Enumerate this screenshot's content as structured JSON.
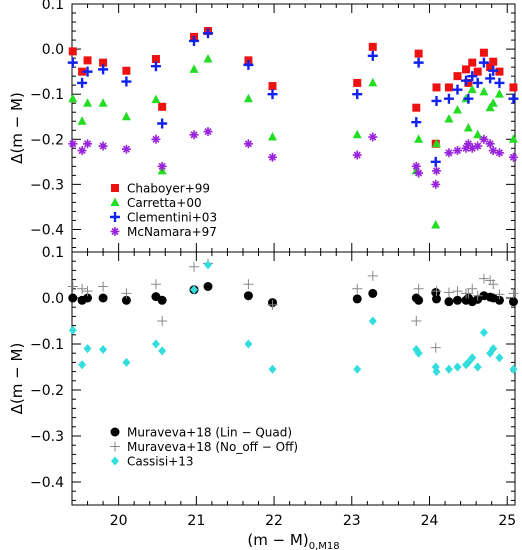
{
  "chart_data": [
    {
      "type": "scatter",
      "panel": "top",
      "ylabel": "Δ(m − M)",
      "xlim": [
        19.4,
        25.1
      ],
      "ylim": [
        -0.45,
        0.1
      ],
      "yticks": [
        {
          "value": 0.1,
          "label": "0.1"
        },
        {
          "value": 0.0,
          "label": "0.0"
        },
        {
          "value": -0.1,
          "label": "−0.1"
        },
        {
          "value": -0.2,
          "label": "−0.2"
        },
        {
          "value": -0.3,
          "label": "−0.3"
        },
        {
          "value": -0.4,
          "label": "−0.4"
        }
      ],
      "legend": "center-left",
      "series": [
        {
          "name": "Chaboyer+99",
          "marker": "square",
          "color": "#ee1111",
          "points": [
            [
              19.41,
              -0.005
            ],
            [
              19.53,
              -0.05
            ],
            [
              19.6,
              -0.025
            ],
            [
              19.8,
              -0.03
            ],
            [
              20.1,
              -0.048
            ],
            [
              20.48,
              -0.022
            ],
            [
              20.56,
              -0.128
            ],
            [
              20.97,
              0.027
            ],
            [
              21.15,
              0.04
            ],
            [
              21.67,
              -0.025
            ],
            [
              21.98,
              -0.082
            ],
            [
              23.07,
              -0.075
            ],
            [
              23.27,
              0.005
            ],
            [
              23.83,
              -0.13
            ],
            [
              23.86,
              -0.01
            ],
            [
              24.08,
              -0.21
            ],
            [
              24.09,
              -0.085
            ],
            [
              24.25,
              -0.085
            ],
            [
              24.36,
              -0.06
            ],
            [
              24.47,
              -0.045
            ],
            [
              24.5,
              -0.075
            ],
            [
              24.55,
              -0.03
            ],
            [
              24.62,
              -0.05
            ],
            [
              24.7,
              -0.008
            ],
            [
              24.78,
              -0.04
            ],
            [
              24.82,
              -0.028
            ],
            [
              24.9,
              -0.05
            ],
            [
              25.08,
              -0.085
            ]
          ]
        },
        {
          "name": "Carretta+00",
          "marker": "triangle",
          "color": "#22dd22",
          "points": [
            [
              19.41,
              -0.11
            ],
            [
              19.53,
              -0.16
            ],
            [
              19.6,
              -0.12
            ],
            [
              19.8,
              -0.12
            ],
            [
              20.1,
              -0.15
            ],
            [
              20.48,
              -0.112
            ],
            [
              20.56,
              -0.27
            ],
            [
              20.97,
              -0.045
            ],
            [
              21.15,
              -0.022
            ],
            [
              21.67,
              -0.11
            ],
            [
              21.98,
              -0.195
            ],
            [
              23.07,
              -0.19
            ],
            [
              23.27,
              -0.075
            ],
            [
              23.83,
              -0.27
            ],
            [
              23.86,
              -0.2
            ],
            [
              24.08,
              -0.39
            ],
            [
              24.09,
              -0.21
            ],
            [
              24.25,
              -0.155
            ],
            [
              24.36,
              -0.135
            ],
            [
              24.47,
              -0.11
            ],
            [
              24.5,
              -0.175
            ],
            [
              24.55,
              -0.09
            ],
            [
              24.62,
              -0.19
            ],
            [
              24.7,
              -0.095
            ],
            [
              24.78,
              -0.13
            ],
            [
              24.82,
              -0.12
            ],
            [
              24.9,
              -0.1
            ],
            [
              25.08,
              -0.2
            ]
          ]
        },
        {
          "name": "Clementini+03",
          "marker": "plus",
          "color": "#1122ee",
          "points": [
            [
              19.41,
              -0.03
            ],
            [
              19.53,
              -0.075
            ],
            [
              19.6,
              -0.05
            ],
            [
              19.8,
              -0.045
            ],
            [
              20.1,
              -0.072
            ],
            [
              20.48,
              -0.038
            ],
            [
              20.56,
              -0.165
            ],
            [
              20.97,
              0.018
            ],
            [
              21.15,
              0.035
            ],
            [
              21.67,
              -0.035
            ],
            [
              21.98,
              -0.1
            ],
            [
              23.07,
              -0.1
            ],
            [
              23.27,
              -0.015
            ],
            [
              23.83,
              -0.162
            ],
            [
              23.86,
              -0.03
            ],
            [
              24.08,
              -0.25
            ],
            [
              24.09,
              -0.115
            ],
            [
              24.25,
              -0.11
            ],
            [
              24.36,
              -0.09
            ],
            [
              24.47,
              -0.07
            ],
            [
              24.5,
              -0.11
            ],
            [
              24.55,
              -0.06
            ],
            [
              24.62,
              -0.075
            ],
            [
              24.7,
              -0.03
            ],
            [
              24.78,
              -0.065
            ],
            [
              24.82,
              -0.048
            ],
            [
              24.9,
              -0.075
            ],
            [
              25.08,
              -0.11
            ]
          ]
        },
        {
          "name": "McNamara+97",
          "marker": "star",
          "color": "#9922dd",
          "points": [
            [
              19.41,
              -0.21
            ],
            [
              19.53,
              -0.225
            ],
            [
              19.6,
              -0.21
            ],
            [
              19.8,
              -0.215
            ],
            [
              20.1,
              -0.222
            ],
            [
              20.48,
              -0.2
            ],
            [
              20.56,
              -0.26
            ],
            [
              20.97,
              -0.19
            ],
            [
              21.15,
              -0.183
            ],
            [
              21.67,
              -0.21
            ],
            [
              21.98,
              -0.24
            ],
            [
              23.07,
              -0.235
            ],
            [
              23.27,
              -0.195
            ],
            [
              23.83,
              -0.26
            ],
            [
              23.86,
              -0.275
            ],
            [
              24.08,
              -0.3
            ],
            [
              24.09,
              -0.27
            ],
            [
              24.25,
              -0.23
            ],
            [
              24.36,
              -0.225
            ],
            [
              24.47,
              -0.22
            ],
            [
              24.5,
              -0.21
            ],
            [
              24.55,
              -0.22
            ],
            [
              24.62,
              -0.215
            ],
            [
              24.7,
              -0.2
            ],
            [
              24.78,
              -0.21
            ],
            [
              24.82,
              -0.225
            ],
            [
              24.9,
              -0.23
            ],
            [
              25.08,
              -0.24
            ]
          ]
        }
      ]
    },
    {
      "type": "scatter",
      "panel": "bottom",
      "xlabel": "(m − M)0,M18",
      "xlabel_main": "(m − M)",
      "xlabel_sub": "0,M18",
      "ylabel": "Δ(m − M)",
      "xlim": [
        19.4,
        25.1
      ],
      "ylim": [
        -0.45,
        0.1
      ],
      "xticks": [
        {
          "value": 20,
          "label": "20"
        },
        {
          "value": 21,
          "label": "21"
        },
        {
          "value": 22,
          "label": "22"
        },
        {
          "value": 23,
          "label": "23"
        },
        {
          "value": 24,
          "label": "24"
        },
        {
          "value": 25,
          "label": "25"
        }
      ],
      "yticks": [
        {
          "value": 0.1,
          "label": "0.1"
        },
        {
          "value": 0.0,
          "label": "0.0"
        },
        {
          "value": -0.1,
          "label": "−0.1"
        },
        {
          "value": -0.2,
          "label": "−0.2"
        },
        {
          "value": -0.3,
          "label": "−0.3"
        },
        {
          "value": -0.4,
          "label": "−0.4"
        }
      ],
      "legend": "bottom-left",
      "series": [
        {
          "name": "Muraveva+18 (Lin − Quad)",
          "marker": "circle",
          "color": "#000000",
          "points": [
            [
              19.41,
              0.0
            ],
            [
              19.53,
              -0.005
            ],
            [
              19.6,
              0.0
            ],
            [
              19.8,
              0.0
            ],
            [
              20.1,
              -0.005
            ],
            [
              20.48,
              0.003
            ],
            [
              20.56,
              -0.005
            ],
            [
              20.97,
              0.018
            ],
            [
              21.15,
              0.025
            ],
            [
              21.67,
              0.005
            ],
            [
              21.98,
              -0.01
            ],
            [
              23.07,
              -0.002
            ],
            [
              23.27,
              0.01
            ],
            [
              23.83,
              0.0
            ],
            [
              23.86,
              -0.005
            ],
            [
              24.08,
              0.012
            ],
            [
              24.09,
              -0.002
            ],
            [
              24.25,
              -0.008
            ],
            [
              24.36,
              -0.005
            ],
            [
              24.47,
              -0.005
            ],
            [
              24.5,
              0.0
            ],
            [
              24.55,
              -0.008
            ],
            [
              24.62,
              -0.003
            ],
            [
              24.7,
              0.005
            ],
            [
              24.78,
              0.002
            ],
            [
              24.82,
              0.0
            ],
            [
              24.9,
              -0.005
            ],
            [
              25.08,
              -0.008
            ]
          ]
        },
        {
          "name": "Muraveva+18 (No_off − Off)",
          "marker": "thin-plus",
          "color": "#888888",
          "points": [
            [
              19.41,
              0.025
            ],
            [
              19.53,
              0.02
            ],
            [
              19.6,
              0.015
            ],
            [
              19.8,
              0.025
            ],
            [
              20.1,
              0.01
            ],
            [
              20.48,
              0.03
            ],
            [
              20.56,
              -0.05
            ],
            [
              20.97,
              0.068
            ],
            [
              21.15,
              0.075
            ],
            [
              21.67,
              0.03
            ],
            [
              21.98,
              -0.015
            ],
            [
              23.07,
              0.02
            ],
            [
              23.27,
              0.048
            ],
            [
              23.83,
              -0.05
            ],
            [
              23.86,
              0.02
            ],
            [
              24.08,
              -0.108
            ],
            [
              24.09,
              0.015
            ],
            [
              24.25,
              0.012
            ],
            [
              24.36,
              0.015
            ],
            [
              24.47,
              0.01
            ],
            [
              24.5,
              0.01
            ],
            [
              24.55,
              0.02
            ],
            [
              24.62,
              0.005
            ],
            [
              24.7,
              0.042
            ],
            [
              24.78,
              0.038
            ],
            [
              24.82,
              0.03
            ],
            [
              24.9,
              0.008
            ],
            [
              25.08,
              0.01
            ]
          ]
        },
        {
          "name": "Cassisi+13",
          "marker": "diamond",
          "color": "#33dddd",
          "points": [
            [
              19.41,
              -0.07
            ],
            [
              19.53,
              -0.145
            ],
            [
              19.6,
              -0.11
            ],
            [
              19.8,
              -0.112
            ],
            [
              20.1,
              -0.14
            ],
            [
              20.48,
              -0.1
            ],
            [
              20.56,
              -0.115
            ],
            [
              20.97,
              0.018
            ],
            [
              21.15,
              0.072
            ],
            [
              21.67,
              -0.1
            ],
            [
              21.98,
              -0.155
            ],
            [
              23.07,
              -0.155
            ],
            [
              23.27,
              -0.05
            ],
            [
              23.83,
              -0.112
            ],
            [
              23.86,
              -0.12
            ],
            [
              24.08,
              -0.15
            ],
            [
              24.09,
              -0.16
            ],
            [
              24.25,
              -0.155
            ],
            [
              24.36,
              -0.15
            ],
            [
              24.47,
              -0.145
            ],
            [
              24.5,
              -0.14
            ],
            [
              24.55,
              -0.13
            ],
            [
              24.62,
              -0.15
            ],
            [
              24.7,
              -0.075
            ],
            [
              24.78,
              -0.12
            ],
            [
              24.82,
              -0.11
            ],
            [
              24.9,
              -0.13
            ],
            [
              25.08,
              -0.155
            ]
          ]
        }
      ]
    }
  ]
}
